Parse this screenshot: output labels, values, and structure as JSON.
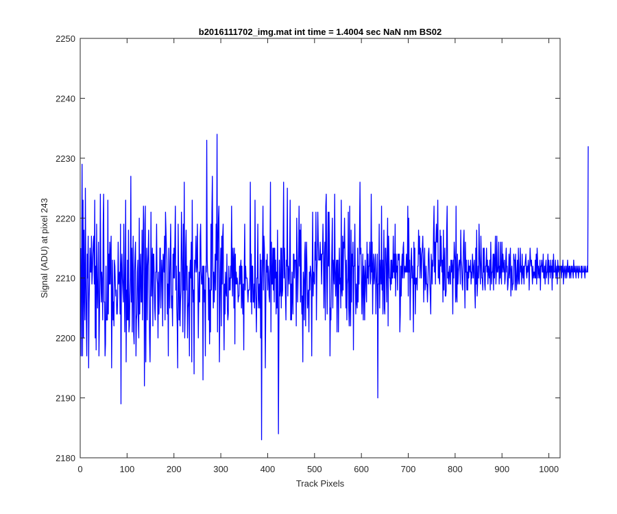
{
  "chart_data": {
    "type": "line",
    "title": "b2016111702_img.mat int time = 1.4004 sec  NaN nm BS02",
    "xlabel": "Track Pixels",
    "ylabel": "Signal (ADU) at pixel 243",
    "xlim": [
      0,
      1024
    ],
    "ylim": [
      2180,
      2250
    ],
    "xticks": [
      0,
      100,
      200,
      300,
      400,
      500,
      600,
      700,
      800,
      900,
      1000
    ],
    "yticks": [
      2180,
      2190,
      2200,
      2210,
      2220,
      2230,
      2240,
      2250
    ],
    "grid": false,
    "box": true,
    "series": [
      {
        "color": "#0000ff",
        "x_start": 1,
        "x_step": 1,
        "values": [
          2215,
          2197,
          2210,
          2229,
          2197,
          2223,
          2200,
          2218,
          2207,
          2203,
          2225,
          2210,
          2203,
          2197,
          2214,
          2210,
          2217,
          2195,
          2206,
          2210,
          2215,
          2211,
          2211,
          2217,
          2209,
          2211,
          2214,
          2216,
          2217,
          2209,
          2223,
          2200,
          2212,
          2198,
          2219,
          2209,
          2205,
          2210,
          2216,
          2197,
          2203,
          2210,
          2224,
          2211,
          2206,
          2211,
          2209,
          2203,
          2219,
          2224,
          2206,
          2206,
          2197,
          2199,
          2212,
          2203,
          2203,
          2203,
          2223,
          2204,
          2214,
          2209,
          2216,
          2209,
          2214,
          2217,
          2195,
          2206,
          2213,
          2203,
          2206,
          2202,
          2213,
          2212,
          2209,
          2207,
          2208,
          2204,
          2204,
          2207,
          2216,
          2209,
          2210,
          2211,
          2204,
          2219,
          2189,
          2212,
          2214,
          2210,
          2208,
          2206,
          2219,
          2211,
          2201,
          2210,
          2223,
          2196,
          2208,
          2203,
          2213,
          2203,
          2218,
          2201,
          2202,
          2207,
          2210,
          2227,
          2206,
          2215,
          2201,
          2211,
          2217,
          2201,
          2199,
          2211,
          2214,
          2216,
          2197,
          2203,
          2204,
          2211,
          2213,
          2203,
          2200,
          2220,
          2204,
          2210,
          2214,
          2206,
          2206,
          2218,
          2203,
          2213,
          2222,
          2219,
          2192,
          2204,
          2222,
          2196,
          2210,
          2215,
          2203,
          2212,
          2214,
          2218,
          2208,
          2200,
          2196,
          2205,
          2221,
          2207,
          2212,
          2215,
          2202,
          2214,
          2214,
          2210,
          2205,
          2203,
          2211,
          2211,
          2219,
          2210,
          2209,
          2200,
          2211,
          2204,
          2207,
          2215,
          2215,
          2205,
          2209,
          2213,
          2211,
          2202,
          2214,
          2213,
          2211,
          2217,
          2203,
          2221,
          2218,
          2215,
          2213,
          2204,
          2209,
          2197,
          2215,
          2210,
          2205,
          2213,
          2219,
          2211,
          2205,
          2207,
          2202,
          2214,
          2210,
          2215,
          2210,
          2216,
          2222,
          2208,
          2212,
          2205,
          2202,
          2195,
          2219,
          2211,
          2203,
          2211,
          2202,
          2206,
          2208,
          2221,
          2215,
          2210,
          2201,
          2219,
          2208,
          2226,
          2200,
          2205,
          2215,
          2218,
          2208,
          2212,
          2200,
          2205,
          2206,
          2211,
          2197,
          2211,
          2213,
          2210,
          2216,
          2196,
          2223,
          2211,
          2206,
          2208,
          2194,
          2213,
          2211,
          2213,
          2217,
          2211,
          2212,
          2219,
          2210,
          2200,
          2207,
          2211,
          2206,
          2217,
          2219,
          2211,
          2209,
          2209,
          2212,
          2193,
          2212,
          2212,
          2206,
          2208,
          2197,
          2212,
          2211,
          2233,
          2213,
          2211,
          2210,
          2203,
          2210,
          2199,
          2208,
          2201,
          2219,
          2208,
          2221,
          2227,
          2212,
          2205,
          2211,
          2206,
          2210,
          2214,
          2208,
          2219,
          2213,
          2234,
          2201,
          2216,
          2220,
          2222,
          2196,
          2204,
          2211,
          2215,
          2202,
          2217,
          2209,
          2217,
          2219,
          2205,
          2198,
          2209,
          2204,
          2211,
          2208,
          2207,
          2214,
          2205,
          2203,
          2204,
          2212,
          2208,
          2210,
          2208,
          2212,
          2210,
          2222,
          2212,
          2207,
          2215,
          2213,
          2205,
          2215,
          2199,
          2214,
          2209,
          2211,
          2209,
          2210,
          2209,
          2206,
          2207,
          2207,
          2212,
          2209,
          2212,
          2213,
          2205,
          2212,
          2207,
          2204,
          2209,
          2198,
          2211,
          2219,
          2208,
          2212,
          2210,
          2210,
          2210,
          2208,
          2206,
          2208,
          2208,
          2208,
          2210,
          2226,
          2206,
          2214,
          2204,
          2212,
          2212,
          2206,
          2206,
          2209,
          2205,
          2223,
          2208,
          2206,
          2201,
          2210,
          2210,
          2219,
          2205,
          2207,
          2209,
          2205,
          2214,
          2200,
          2213,
          2183,
          2209,
          2214,
          2222,
          2208,
          2217,
          2215,
          2210,
          2195,
          2205,
          2213,
          2211,
          2214,
          2208,
          2212,
          2211,
          2207,
          2206,
          2214,
          2226,
          2201,
          2216,
          2209,
          2209,
          2215,
          2208,
          2215,
          2206,
          2215,
          2210,
          2213,
          2204,
          2211,
          2205,
          2218,
          2206,
          2184,
          2201,
          2213,
          2207,
          2208,
          2215,
          2205,
          2215,
          2207,
          2208,
          2216,
          2226,
          2210,
          2215,
          2211,
          2207,
          2203,
          2213,
          2212,
          2225,
          2207,
          2212,
          2211,
          2209,
          2214,
          2223,
          2203,
          2209,
          2203,
          2211,
          2207,
          2204,
          2214,
          2214,
          2210,
          2213,
          2213,
          2213,
          2202,
          2220,
          2214,
          2206,
          2210,
          2214,
          2222,
          2212,
          2218,
          2206,
          2219,
          2208,
          2204,
          2207,
          2196,
          2211,
          2209,
          2203,
          2214,
          2216,
          2202,
          2212,
          2216,
          2211,
          2205,
          2207,
          2208,
          2201,
          2211,
          2208,
          2212,
          2211,
          2210,
          2197,
          2211,
          2221,
          2207,
          2211,
          2210,
          2209,
          2216,
          2213,
          2221,
          2203,
          2211,
          2214,
          2221,
          2216,
          2213,
          2213,
          2213,
          2216,
          2213,
          2214,
          2209,
          2214,
          2214,
          2219,
          2214,
          2205,
          2212,
          2216,
          2203,
          2222,
          2224,
          2211,
          2204,
          2213,
          2221,
          2212,
          2221,
          2214,
          2197,
          2205,
          2203,
          2210,
          2215,
          2220,
          2205,
          2213,
          2211,
          2209,
          2224,
          2211,
          2207,
          2211,
          2213,
          2201,
          2213,
          2213,
          2201,
          2210,
          2215,
          2209,
          2210,
          2205,
          2223,
          2208,
          2207,
          2217,
          2208,
          2216,
          2215,
          2220,
          2214,
          2212,
          2205,
          2213,
          2203,
          2209,
          2210,
          2221,
          2205,
          2202,
          2222,
          2205,
          2202,
          2218,
          2206,
          2214,
          2212,
          2216,
          2198,
          2212,
          2212,
          2219,
          2210,
          2204,
          2209,
          2206,
          2205,
          2215,
          2206,
          2212,
          2209,
          2217,
          2226,
          2214,
          2215,
          2210,
          2204,
          2209,
          2214,
          2203,
          2212,
          2210,
          2203,
          2213,
          2211,
          2208,
          2206,
          2216,
          2210,
          2214,
          2209,
          2212,
          2212,
          2216,
          2209,
          2210,
          2224,
          2211,
          2216,
          2204,
          2212,
          2214,
          2209,
          2210,
          2213,
          2214,
          2204,
          2209,
          2211,
          2214,
          2190,
          2209,
          2209,
          2219,
          2205,
          2211,
          2213,
          2209,
          2222,
          2208,
          2213,
          2204,
          2211,
          2218,
          2205,
          2204,
          2215,
          2215,
          2212,
          2206,
          2214,
          2220,
          2202,
          2217,
          2213,
          2210,
          2210,
          2208,
          2213,
          2209,
          2213,
          2210,
          2210,
          2217,
          2211,
          2214,
          2210,
          2219,
          2207,
          2214,
          2211,
          2212,
          2208,
          2214,
          2214,
          2213,
          2214,
          2201,
          2204,
          2212,
          2207,
          2212,
          2214,
          2210,
          2215,
          2216,
          2210,
          2211,
          2212,
          2211,
          2211,
          2214,
          2211,
          2211,
          2222,
          2207,
          2220,
          2211,
          2213,
          2203,
          2209,
          2213,
          2215,
          2210,
          2212,
          2209,
          2201,
          2216,
          2209,
          2215,
          2204,
          2210,
          2209,
          2210,
          2208,
          2212,
          2212,
          2218,
          2214,
          2217,
          2210,
          2215,
          2213,
          2210,
          2214,
          2215,
          2217,
          2213,
          2206,
          2212,
          2215,
          2208,
          2209,
          2212,
          2209,
          2209,
          2206,
          2209,
          2214,
          2215,
          2212,
          2209,
          2207,
          2204,
          2214,
          2212,
          2209,
          2213,
          2212,
          2218,
          2222,
          2211,
          2216,
          2209,
          2216,
          2219,
          2216,
          2216,
          2223,
          2210,
          2213,
          2210,
          2209,
          2218,
          2212,
          2217,
          2213,
          2211,
          2213,
          2206,
          2218,
          2208,
          2212,
          2215,
          2207,
          2207,
          2208,
          2218,
          2222,
          2210,
          2211,
          2209,
          2211,
          2212,
          2209,
          2209,
          2213,
          2211,
          2213,
          2212,
          2204,
          2213,
          2210,
          2216,
          2214,
          2213,
          2206,
          2222,
          2207,
          2206,
          2214,
          2209,
          2211,
          2212,
          2213,
          2213,
          2209,
          2218,
          2213,
          2212,
          2209,
          2208,
          2212,
          2216,
          2218,
          2211,
          2205,
          2216,
          2211,
          2213,
          2208,
          2211,
          2208,
          2213,
          2210,
          2212,
          2212,
          2211,
          2213,
          2209,
          2211,
          2210,
          2214,
          2212,
          2210,
          2212,
          2213,
          2208,
          2205,
          2215,
          2209,
          2218,
          2207,
          2209,
          2212,
          2210,
          2219,
          2214,
          2211,
          2209,
          2217,
          2213,
          2210,
          2210,
          2208,
          2215,
          2211,
          2215,
          2209,
          2208,
          2212,
          2212,
          2215,
          2211,
          2213,
          2209,
          2212,
          2211,
          2210,
          2213,
          2208,
          2216,
          2212,
          2209,
          2211,
          2211,
          2214,
          2208,
          2214,
          2210,
          2213,
          2217,
          2209,
          2211,
          2217,
          2211,
          2211,
          2212,
          2216,
          2209,
          2212,
          2210,
          2216,
          2211,
          2209,
          2216,
          2211,
          2214,
          2212,
          2211,
          2213,
          2209,
          2210,
          2213,
          2215,
          2211,
          2212,
          2208,
          2209,
          2211,
          2214,
          2210,
          2213,
          2215,
          2207,
          2211,
          2212,
          2208,
          2209,
          2209,
          2214,
          2213,
          2213,
          2208,
          2214,
          2210,
          2208,
          2211,
          2213,
          2209,
          2215,
          2210,
          2209,
          2212,
          2215,
          2211,
          2212,
          2209,
          2214,
          2211,
          2210,
          2212,
          2209,
          2212,
          2212,
          2213,
          2214,
          2211,
          2210,
          2212,
          2211,
          2213,
          2212,
          2208,
          2212,
          2215,
          2213,
          2212,
          2213,
          2211,
          2209,
          2212,
          2210,
          2211,
          2211,
          2210,
          2213,
          2210,
          2214,
          2209,
          2215,
          2213,
          2210,
          2212,
          2211,
          2210,
          2213,
          2208,
          2212,
          2212,
          2213,
          2211,
          2211,
          2214,
          2210,
          2210,
          2212,
          2209,
          2212,
          2213,
          2210,
          2211,
          2211,
          2214,
          2209,
          2213,
          2211,
          2212,
          2210,
          2213,
          2211,
          2212,
          2208,
          2213,
          2210,
          2214,
          2211,
          2211,
          2211,
          2213,
          2210,
          2211,
          2212,
          2209,
          2213,
          2211,
          2212,
          2212,
          2210,
          2211,
          2212,
          2212,
          2210,
          2212,
          2211,
          2213,
          2209,
          2211,
          2212,
          2211,
          2210,
          2212,
          2212,
          2210,
          2211,
          2213,
          2211,
          2211,
          2212,
          2210,
          2212,
          2211,
          2210,
          2212,
          2211,
          2212,
          2211,
          2210,
          2213,
          2211,
          2211,
          2212,
          2211,
          2210,
          2212,
          2211,
          2211,
          2212,
          2210,
          2211,
          2212,
          2211,
          2211,
          2211,
          2212,
          2210,
          2212,
          2211,
          2211,
          2211,
          2212,
          2211,
          2210,
          2212,
          2211,
          2211,
          2211,
          2212,
          2211,
          2232
        ]
      }
    ]
  }
}
